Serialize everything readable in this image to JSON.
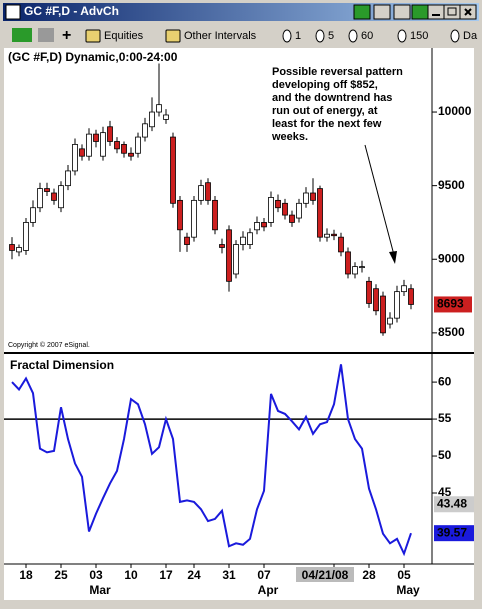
{
  "window": {
    "title": "GC #F,D - AdvCh"
  },
  "toolbar": {
    "items": [
      "Equities",
      "Other Intervals",
      "1",
      "5",
      "60",
      "150",
      "Da"
    ]
  },
  "chart_data": [
    {
      "type": "candlestick",
      "title": "(GC #F,D) Dynamic,0:00-24:00",
      "annotation": [
        "Possible reversal pattern",
        "developing off $852,",
        "and the downtrend has",
        "run out of energy, at",
        "least for the next few",
        "weeks."
      ],
      "copyright": "Copyright © 2007 eSignal.",
      "categories": [
        null,
        null,
        "18",
        null,
        null,
        null,
        null,
        "25",
        null,
        null,
        null,
        null,
        "03",
        null,
        null,
        null,
        null,
        "10",
        null,
        null,
        null,
        null,
        "17",
        null,
        null,
        null,
        "24",
        null,
        null,
        null,
        null,
        "31",
        null,
        null,
        null,
        null,
        "07",
        null,
        null,
        null,
        null,
        null,
        null,
        null,
        null,
        null,
        "04/21/08",
        null,
        null,
        null,
        null,
        "28",
        null,
        null,
        null,
        null,
        "05",
        null
      ],
      "month_labels": [
        null,
        null,
        null,
        null,
        null,
        null,
        null,
        null,
        null,
        null,
        null,
        null,
        "Mar",
        null,
        null,
        null,
        null,
        null,
        null,
        null,
        null,
        null,
        null,
        null,
        null,
        null,
        null,
        null,
        null,
        null,
        null,
        null,
        null,
        null,
        null,
        null,
        "Apr",
        null,
        null,
        null,
        null,
        null,
        null,
        null,
        null,
        null,
        null,
        null,
        null,
        null,
        null,
        null,
        null,
        null,
        null,
        null,
        "May",
        null
      ],
      "open": [
        9100,
        9050,
        9060,
        9250,
        9350,
        9480,
        9450,
        9350,
        9500,
        9600,
        9750,
        9700,
        9850,
        9700,
        9900,
        9800,
        9780,
        9720,
        9720,
        9830,
        9900,
        10000,
        9950,
        9830,
        9400,
        9150,
        9150,
        9400,
        9520,
        9400,
        9100,
        9200,
        8900,
        9100,
        9100,
        9200,
        9250,
        9250,
        9400,
        9380,
        9300,
        9280,
        9380,
        9450,
        9480,
        9150,
        9170,
        9150,
        9050,
        8900,
        8950,
        8850,
        8800,
        8750,
        8560,
        8600,
        8780,
        8800
      ],
      "high": [
        9150,
        9100,
        9280,
        9400,
        9520,
        9520,
        9480,
        9530,
        9640,
        9820,
        9780,
        9890,
        9880,
        9900,
        9940,
        9830,
        9800,
        9760,
        9860,
        9960,
        10100,
        10330,
        10020,
        9860,
        9430,
        9180,
        9430,
        9540,
        9550,
        9430,
        9140,
        9230,
        9130,
        9190,
        9210,
        9290,
        9280,
        9460,
        9440,
        9410,
        9330,
        9410,
        9490,
        9550,
        9500,
        9210,
        9200,
        9180,
        9080,
        8980,
        8990,
        8880,
        8830,
        8780,
        8640,
        8820,
        8860,
        8830
      ],
      "low": [
        9000,
        9020,
        9030,
        9220,
        9320,
        9430,
        9370,
        9320,
        9470,
        9570,
        9670,
        9670,
        9760,
        9670,
        9770,
        9720,
        9690,
        9670,
        9690,
        9800,
        9870,
        9970,
        9920,
        9350,
        9050,
        9050,
        9120,
        9370,
        9370,
        9170,
        9040,
        8780,
        8870,
        9060,
        9070,
        9170,
        9190,
        9220,
        9320,
        9270,
        9220,
        9250,
        9350,
        9370,
        9120,
        9120,
        9130,
        9020,
        8870,
        8870,
        8910,
        8670,
        8620,
        8480,
        8530,
        8570,
        8750,
        8660
      ],
      "close": [
        9060,
        9080,
        9250,
        9350,
        9480,
        9460,
        9400,
        9500,
        9600,
        9780,
        9700,
        9850,
        9800,
        9860,
        9800,
        9750,
        9720,
        9700,
        9830,
        9920,
        10000,
        10050,
        9980,
        9380,
        9200,
        9100,
        9400,
        9500,
        9400,
        9200,
        9080,
        8850,
        9100,
        9150,
        9180,
        9250,
        9220,
        9420,
        9350,
        9300,
        9250,
        9380,
        9450,
        9400,
        9150,
        9170,
        9160,
        9050,
        8900,
        8950,
        8950,
        8700,
        8650,
        8500,
        8600,
        8780,
        8820,
        8693
      ],
      "up_color": "#ffffff",
      "down_color": "#cc1f1f",
      "ylim": [
        8370,
        10435
      ],
      "yticks": [
        8500,
        9000,
        9500,
        10000
      ]
    },
    {
      "type": "line",
      "title": "Fractal Dimension",
      "values": [
        60,
        59,
        60.5,
        58.5,
        51,
        50.5,
        50.7,
        56.6,
        52.3,
        49,
        47.2,
        39.8,
        42.2,
        44.3,
        46.3,
        48,
        52.3,
        57.7,
        57,
        54.3,
        50.3,
        51.2,
        55,
        52.3,
        43.8,
        44,
        43.8,
        42.8,
        41.2,
        41.5,
        42.6,
        37.8,
        38.2,
        38,
        38.8,
        42.8,
        45.3,
        58.4,
        56.1,
        55.7,
        54.7,
        53.6,
        55.3,
        53,
        54.3,
        54.6,
        57,
        62.4,
        55,
        52.3,
        51,
        45.6,
        42.8,
        39.5,
        38.2,
        38.8,
        36.8,
        39.57
      ],
      "color": "#1a1adc",
      "reference_line": 55,
      "marker_value": 43.48,
      "ylim": [
        35.4,
        63.8
      ],
      "yticks": [
        45,
        50,
        55,
        60
      ]
    }
  ]
}
